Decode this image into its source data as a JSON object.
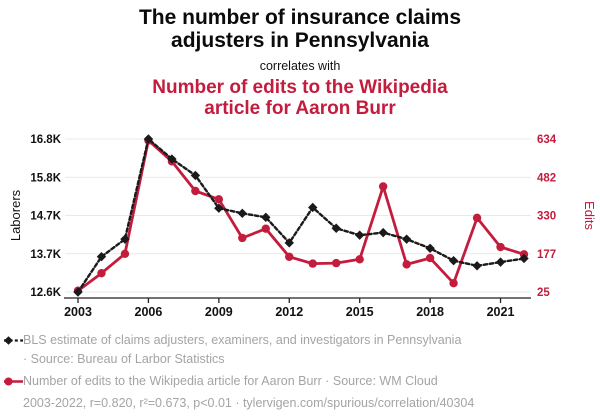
{
  "header": {
    "title_line1": "The number of insurance claims",
    "title_line2": "adjusters in Pennsylvania",
    "connector": "correlates with",
    "subtitle_line1": "Number of edits to the Wikipedia",
    "subtitle_line2": "article for Aaron Burr"
  },
  "colors": {
    "series_red": "#C31C3D",
    "series_black": "#1A1A1A",
    "legend_gray": "#A4A4A4",
    "gridline": "#E9E9E9",
    "axis": "#222222"
  },
  "chart_data": {
    "type": "line",
    "x": [
      2003,
      2004,
      2005,
      2006,
      2007,
      2008,
      2009,
      2010,
      2011,
      2012,
      2013,
      2014,
      2015,
      2016,
      2017,
      2018,
      2019,
      2020,
      2021,
      2022
    ],
    "series": [
      {
        "name": "BLS estimate of claims adjusters, examiners, and investigators in Pennsylvania",
        "axis": "left",
        "line_style": "dashed",
        "marker": "diamond",
        "color_key": "series_black",
        "values": [
          12600,
          13570,
          14050,
          16800,
          16250,
          15800,
          14900,
          14760,
          14650,
          13950,
          14920,
          14350,
          14160,
          14230,
          14050,
          13800,
          13460,
          13320,
          13420,
          13520
        ]
      },
      {
        "name": "Number of edits to the Wikipedia article for Aaron Burr",
        "axis": "right",
        "line_style": "solid",
        "marker": "circle",
        "color_key": "series_red",
        "values": [
          30,
          100,
          177,
          628,
          545,
          427,
          394,
          240,
          277,
          165,
          138,
          140,
          155,
          445,
          135,
          160,
          60,
          320,
          204,
          175
        ]
      }
    ],
    "left_axis": {
      "label": "Laborers",
      "tick_labels": [
        "16.8K",
        "15.8K",
        "14.7K",
        "13.7K",
        "12.6K"
      ],
      "range": [
        16800,
        12600
      ]
    },
    "right_axis": {
      "label": "Edits",
      "tick_labels": [
        "634",
        "482",
        "330",
        "177",
        "25"
      ],
      "range": [
        634,
        25
      ]
    },
    "x_axis": {
      "tick_labels": [
        "2003",
        "2006",
        "2009",
        "2012",
        "2015",
        "2018",
        "2021"
      ]
    },
    "grid": true,
    "legend_position": "bottom"
  },
  "legend": {
    "series1_label": "BLS estimate of claims adjusters, examiners, and investigators in Pennsylvania",
    "series1_source": "· Source: Bureau of Larbor Statistics",
    "series2_label": "Number of edits to the Wikipedia article for Aaron Burr · Source: WM Cloud",
    "stats_line": "2003-2022, r=0.820, r²=0.673, p<0.01 · tylervigen.com/spurious/correlation/40304"
  }
}
